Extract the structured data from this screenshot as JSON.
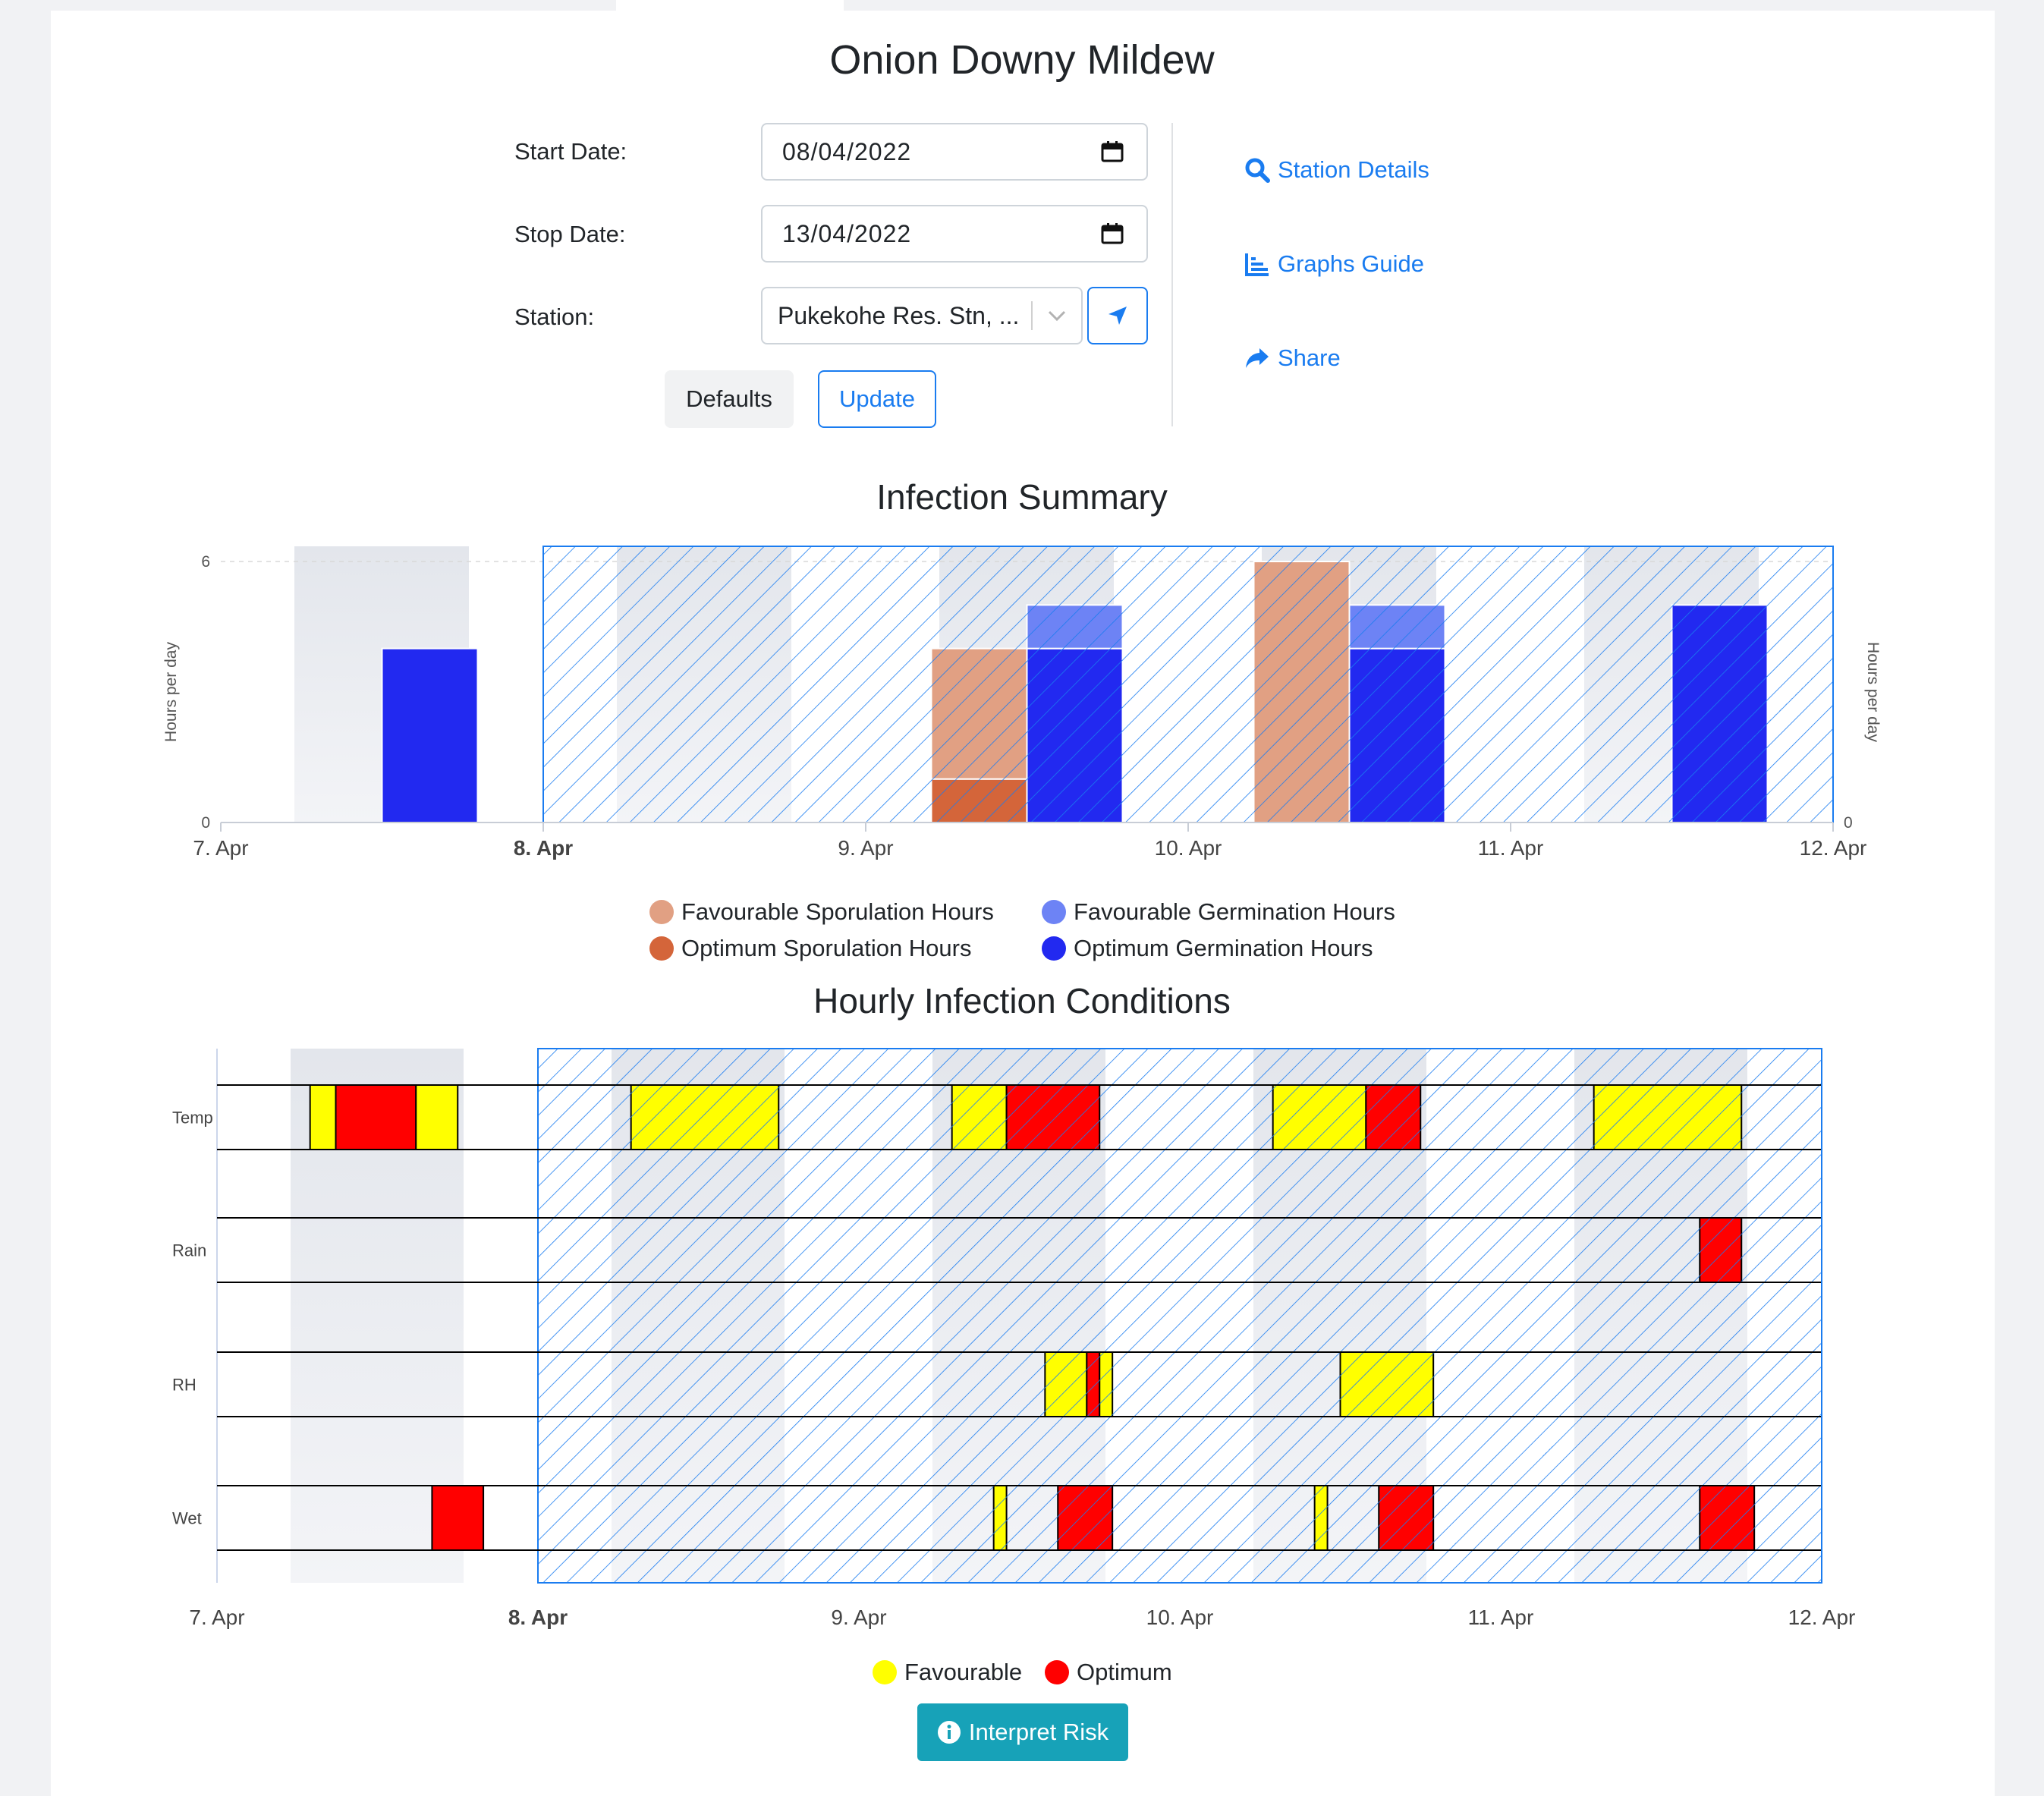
{
  "page_title": "Onion Downy Mildew",
  "form": {
    "start_label": "Start Date:",
    "start_value": "08/04/2022",
    "stop_label": "Stop Date:",
    "stop_value": "13/04/2022",
    "station_label": "Station:",
    "station_value": "Pukekohe Res. Stn, ...",
    "defaults_label": "Defaults",
    "update_label": "Update"
  },
  "links": {
    "station_details": "Station Details",
    "graphs_guide": "Graphs Guide",
    "share": "Share"
  },
  "interpret_label": "Interpret Risk",
  "colors": {
    "accent": "#1a7cf0",
    "fav_sporulation": "#e1a083",
    "opt_sporulation": "#d4653a",
    "fav_germination": "#6d83f5",
    "opt_germination": "#2229f0",
    "favourable": "#ffff00",
    "optimum": "#ff0000",
    "info_button": "#17a2b8"
  },
  "chart_data": [
    {
      "type": "bar",
      "title": "Infection Summary",
      "ylabel": "Hours per day",
      "y2label": "Hours per day",
      "ylim": [
        0,
        6
      ],
      "yticks": [
        0,
        6
      ],
      "y2ticks": [
        0
      ],
      "xticks": [
        "7. Apr",
        "8. Apr",
        "9. Apr",
        "10. Apr",
        "11. Apr",
        "12. Apr"
      ],
      "categories": [
        "7. Apr",
        "9. Apr",
        "10. Apr",
        "11. Apr"
      ],
      "series": [
        {
          "name": "Favourable Sporulation Hours",
          "values": [
            0,
            3,
            6,
            0
          ]
        },
        {
          "name": "Optimum Sporulation Hours",
          "values": [
            0,
            1,
            0,
            0
          ]
        },
        {
          "name": "Favourable Germination Hours",
          "values": [
            0,
            1,
            1,
            0
          ]
        },
        {
          "name": "Optimum Germination Hours",
          "values": [
            4,
            4,
            4,
            5
          ]
        }
      ],
      "legend": "bottom-center",
      "selected_range": [
        "8. Apr",
        "12. Apr"
      ]
    },
    {
      "type": "timeline",
      "title": "Hourly Infection Conditions",
      "rows": [
        "Temp",
        "Rain",
        "RH",
        "Wet"
      ],
      "xticks": [
        "7. Apr",
        "8. Apr",
        "9. Apr",
        "10. Apr",
        "11. Apr",
        "12. Apr"
      ],
      "legend_items": [
        "Favourable",
        "Optimum"
      ],
      "legend": "bottom-center",
      "selected_range": [
        "8. Apr",
        "12. Apr"
      ],
      "blocks": [
        {
          "row": "Temp",
          "start": 7.29,
          "end": 7.37,
          "level": "Favourable"
        },
        {
          "row": "Temp",
          "start": 7.37,
          "end": 7.62,
          "level": "Optimum"
        },
        {
          "row": "Temp",
          "start": 7.62,
          "end": 7.75,
          "level": "Favourable"
        },
        {
          "row": "Temp",
          "start": 8.29,
          "end": 8.75,
          "level": "Favourable"
        },
        {
          "row": "Temp",
          "start": 9.29,
          "end": 9.46,
          "level": "Favourable"
        },
        {
          "row": "Temp",
          "start": 9.46,
          "end": 9.75,
          "level": "Optimum"
        },
        {
          "row": "Temp",
          "start": 10.29,
          "end": 10.58,
          "level": "Favourable"
        },
        {
          "row": "Temp",
          "start": 10.58,
          "end": 10.75,
          "level": "Optimum"
        },
        {
          "row": "Temp",
          "start": 11.29,
          "end": 11.75,
          "level": "Favourable"
        },
        {
          "row": "Rain",
          "start": 11.62,
          "end": 11.75,
          "level": "Optimum"
        },
        {
          "row": "RH",
          "start": 9.58,
          "end": 9.71,
          "level": "Favourable"
        },
        {
          "row": "RH",
          "start": 9.71,
          "end": 9.75,
          "level": "Optimum"
        },
        {
          "row": "RH",
          "start": 9.75,
          "end": 9.79,
          "level": "Favourable"
        },
        {
          "row": "RH",
          "start": 10.5,
          "end": 10.79,
          "level": "Favourable"
        },
        {
          "row": "Wet",
          "start": 7.67,
          "end": 7.83,
          "level": "Optimum"
        },
        {
          "row": "Wet",
          "start": 9.42,
          "end": 9.46,
          "level": "Favourable"
        },
        {
          "row": "Wet",
          "start": 9.62,
          "end": 9.79,
          "level": "Optimum"
        },
        {
          "row": "Wet",
          "start": 10.42,
          "end": 10.46,
          "level": "Favourable"
        },
        {
          "row": "Wet",
          "start": 10.62,
          "end": 10.79,
          "level": "Optimum"
        },
        {
          "row": "Wet",
          "start": 11.62,
          "end": 11.79,
          "level": "Optimum"
        }
      ]
    }
  ]
}
